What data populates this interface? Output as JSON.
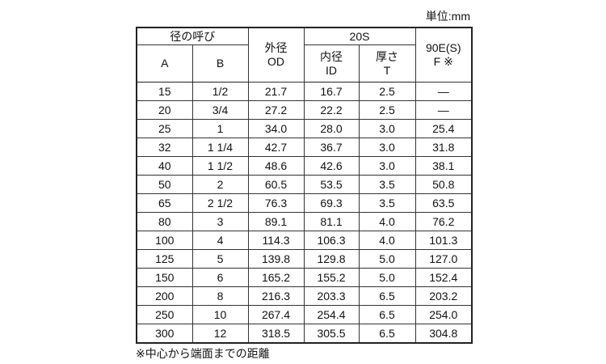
{
  "unit_label": "単位:mm",
  "header": {
    "nominal": "径の呼び",
    "a": "A",
    "b": "B",
    "od_jp": "外径",
    "od": "OD",
    "schedule": "20S",
    "id_jp": "内径",
    "id": "ID",
    "t_jp": "厚さ",
    "t": "T",
    "f_top": "90E(S)",
    "f": "F ※"
  },
  "rows": [
    [
      "15",
      "1/2",
      "21.7",
      "16.7",
      "2.5",
      "—"
    ],
    [
      "20",
      "3/4",
      "27.2",
      "22.2",
      "2.5",
      "—"
    ],
    [
      "25",
      "1",
      "34.0",
      "28.0",
      "3.0",
      "25.4"
    ],
    [
      "32",
      "1 1/4",
      "42.7",
      "36.7",
      "3.0",
      "31.8"
    ],
    [
      "40",
      "1 1/2",
      "48.6",
      "42.6",
      "3.0",
      "38.1"
    ],
    [
      "50",
      "2",
      "60.5",
      "53.5",
      "3.5",
      "50.8"
    ],
    [
      "65",
      "2 1/2",
      "76.3",
      "69.3",
      "3.5",
      "63.5"
    ],
    [
      "80",
      "3",
      "89.1",
      "81.1",
      "4.0",
      "76.2"
    ],
    [
      "100",
      "4",
      "114.3",
      "106.3",
      "4.0",
      "101.3"
    ],
    [
      "125",
      "5",
      "139.8",
      "129.8",
      "5.0",
      "127.0"
    ],
    [
      "150",
      "6",
      "165.2",
      "155.2",
      "5.0",
      "152.4"
    ],
    [
      "200",
      "8",
      "216.3",
      "203.3",
      "6.5",
      "203.2"
    ],
    [
      "250",
      "10",
      "267.4",
      "254.4",
      "6.5",
      "254.0"
    ],
    [
      "300",
      "12",
      "318.5",
      "305.5",
      "6.5",
      "304.8"
    ]
  ],
  "footnote": "※中心から端面までの距離"
}
